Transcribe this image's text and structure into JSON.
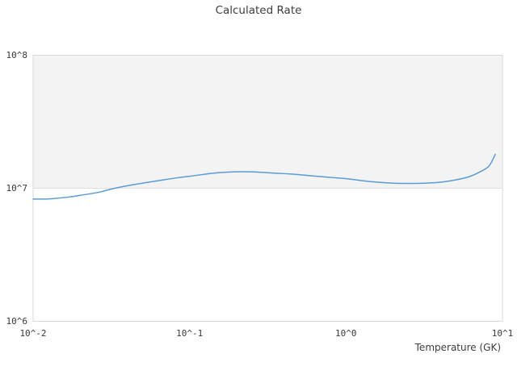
{
  "chart": {
    "title": "Calculated Rate"
  },
  "chart_data": {
    "type": "line",
    "title": "Calculated Rate",
    "xlabel": "Temperature (GK)",
    "ylabel": "",
    "x_scale": "log",
    "y_scale": "log",
    "xlim": [
      0.01,
      10
    ],
    "ylim": [
      1000000,
      100000000
    ],
    "grid": "off",
    "legend": "none",
    "x_ticks": [
      {
        "value": 0.01,
        "label": "10^-2"
      },
      {
        "value": 0.1,
        "label": "10^-1"
      },
      {
        "value": 1,
        "label": "10^0"
      },
      {
        "value": 10,
        "label": "10^1"
      }
    ],
    "y_ticks": [
      {
        "value": 1000000,
        "label": "10^6"
      },
      {
        "value": 10000000,
        "label": "10^7"
      },
      {
        "value": 100000000,
        "label": "10^8"
      }
    ],
    "band": {
      "from": 10000000,
      "to": 100000000,
      "fill_color": "#f3f3f3",
      "edge_color": "#e0e0e0"
    },
    "series": [
      {
        "name": "Calculated Rate",
        "color": "#5b9bd5",
        "line_width": 1.5,
        "x": [
          0.01,
          0.012,
          0.014,
          0.017,
          0.02,
          0.026,
          0.032,
          0.041,
          0.052,
          0.066,
          0.084,
          0.1,
          0.135,
          0.17,
          0.22,
          0.28,
          0.35,
          0.44,
          0.56,
          0.71,
          1.0,
          1.46,
          2.1,
          3.0,
          4.0,
          5.1,
          6.1,
          7.2,
          8.2,
          9.0
        ],
        "y": [
          8300000,
          8300000,
          8400000,
          8600000,
          8850000,
          9300000,
          9900000,
          10500000,
          11000000,
          11500000,
          12000000,
          12300000,
          12900000,
          13200000,
          13300000,
          13200000,
          13000000,
          12800000,
          12500000,
          12200000,
          11800000,
          11200000,
          10900000,
          10900000,
          11100000,
          11600000,
          12200000,
          13300000,
          14700000,
          18000000
        ]
      }
    ],
    "colors": {
      "text": "#3d3d3d",
      "plot_border": "#d9d9d9",
      "background": "#ffffff"
    }
  }
}
